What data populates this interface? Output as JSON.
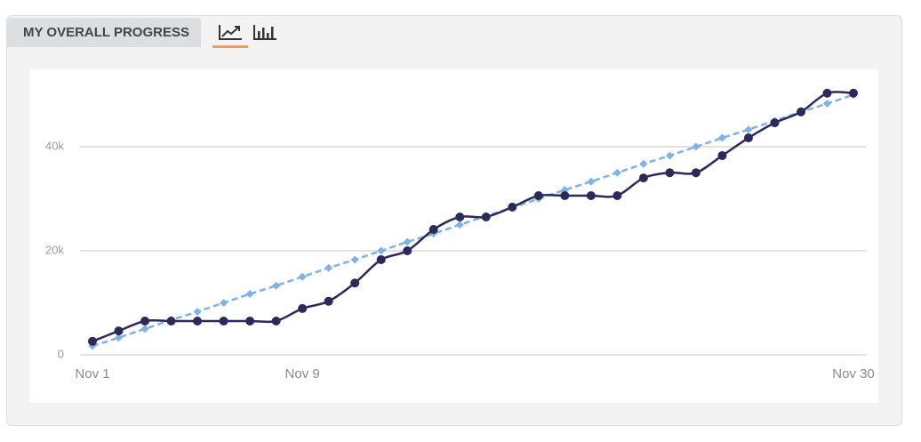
{
  "tab_label": "MY OVERALL PROGRESS",
  "chart_data": {
    "type": "line",
    "categories": [
      "Nov 1",
      null,
      null,
      null,
      null,
      null,
      null,
      null,
      "Nov 9",
      null,
      null,
      null,
      null,
      null,
      null,
      null,
      null,
      null,
      null,
      null,
      null,
      null,
      null,
      null,
      null,
      null,
      null,
      null,
      null,
      "Nov 30"
    ],
    "series": [
      {
        "color": "#2b2a5a",
        "style": "solid",
        "marker": "circle",
        "values": [
          2600,
          4600,
          6500,
          6500,
          6500,
          6500,
          6500,
          6500,
          8900,
          10300,
          13800,
          18300,
          20000,
          24100,
          26500,
          26500,
          28400,
          30600,
          30600,
          30600,
          30600,
          34000,
          35000,
          35000,
          38300,
          41700,
          44600,
          46700,
          50300,
          50300
        ]
      },
      {
        "color": "#7fb2e5",
        "style": "dashed",
        "marker": "diamond",
        "values": [
          1700,
          3300,
          5000,
          6700,
          8300,
          10000,
          11700,
          13300,
          15000,
          16700,
          18300,
          20000,
          21700,
          23300,
          25000,
          26700,
          28300,
          30000,
          31700,
          33300,
          35000,
          36700,
          38300,
          40000,
          41700,
          43300,
          45000,
          46700,
          48300,
          50000
        ]
      }
    ],
    "ylim": [
      0,
      54000
    ],
    "yticks": [
      0,
      {
        "value": 20000,
        "label": "20k"
      },
      {
        "value": 40000,
        "label": "40k"
      }
    ],
    "grid": true
  }
}
